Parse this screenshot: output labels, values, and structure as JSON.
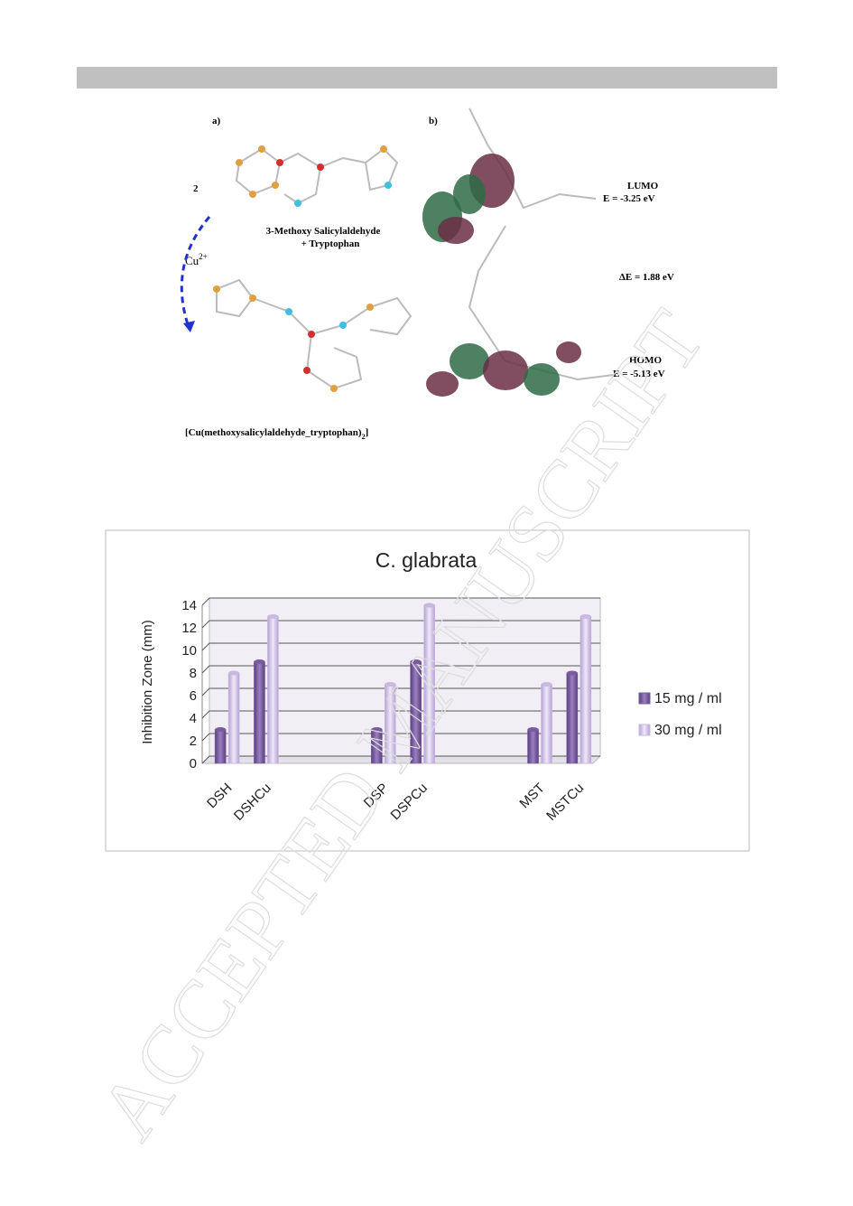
{
  "figure": {
    "panel_a": "a)",
    "panel_b": "b)",
    "stoich": "2",
    "metal": "Cu",
    "metal_charge": "2+",
    "reactants_line1": "3-Methoxy Salicylaldehyde",
    "reactants_line2": "+ Tryptophan",
    "complex": "[Cu(methoxysalicylaldehyde_tryptophan)",
    "complex_sub": "2",
    "complex_end": "]",
    "lumo": "LUMO",
    "lumo_energy": "E = -3.25 eV",
    "gap": "ΔE = 1.88 eV",
    "homo": "HOMO",
    "homo_energy": "E = -5.13 eV"
  },
  "watermark": "ACCEPTED MANUSCRIPT",
  "chart_data": {
    "type": "bar",
    "title": "C. glabrata",
    "y_label": "Inhibition Zone (mm)",
    "categories": [
      "DSH",
      "DSHCu",
      null,
      null,
      "DSP",
      "DSPCu",
      null,
      null,
      "MST",
      "MSTCu"
    ],
    "series": [
      {
        "name": "15 mg / ml",
        "color": "#7a5c9e",
        "values": [
          3,
          9,
          null,
          null,
          3,
          9,
          null,
          null,
          3,
          8
        ]
      },
      {
        "name": "30 mg / ml",
        "color": "#c9b8e0",
        "values": [
          8,
          13,
          null,
          null,
          7,
          14,
          null,
          null,
          7,
          13
        ]
      }
    ],
    "ylim": [
      0,
      14
    ],
    "yticks": [
      0,
      2,
      4,
      6,
      8,
      10,
      12,
      14
    ],
    "grid": true,
    "legend": "right"
  }
}
